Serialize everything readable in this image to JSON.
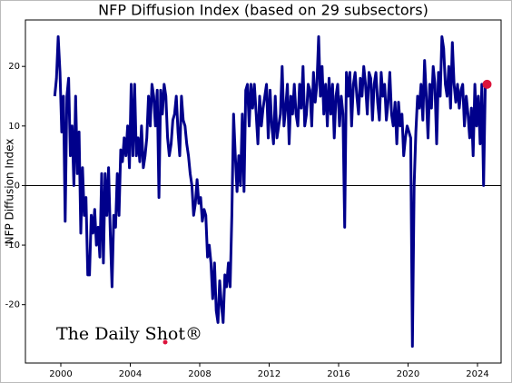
{
  "chart_data": {
    "type": "line",
    "title": "NFP Diffusion Index (based on 29 subsectors)",
    "y_label": "NFP Diffusion Index",
    "watermark": "The Daily Shot®",
    "x": [
      1999.65,
      1999.75,
      1999.85,
      1999.95,
      2000.05,
      2000.15,
      2000.25,
      2000.35,
      2000.45,
      2000.55,
      2000.65,
      2000.75,
      2000.85,
      2000.95,
      2001.05,
      2001.15,
      2001.25,
      2001.35,
      2001.45,
      2001.55,
      2001.65,
      2001.75,
      2001.85,
      2001.95,
      2002.05,
      2002.15,
      2002.25,
      2002.35,
      2002.45,
      2002.55,
      2002.65,
      2002.75,
      2002.85,
      2002.95,
      2003.05,
      2003.15,
      2003.25,
      2003.35,
      2003.45,
      2003.55,
      2003.65,
      2003.75,
      2003.85,
      2003.95,
      2004.05,
      2004.15,
      2004.25,
      2004.35,
      2004.45,
      2004.55,
      2004.65,
      2004.75,
      2004.85,
      2004.95,
      2005.05,
      2005.15,
      2005.25,
      2005.35,
      2005.45,
      2005.55,
      2005.65,
      2005.75,
      2005.85,
      2005.95,
      2006.05,
      2006.15,
      2006.25,
      2006.35,
      2006.45,
      2006.55,
      2006.65,
      2006.75,
      2006.85,
      2006.95,
      2007.05,
      2007.15,
      2007.25,
      2007.35,
      2007.45,
      2007.55,
      2007.65,
      2007.75,
      2007.85,
      2007.95,
      2008.05,
      2008.15,
      2008.25,
      2008.35,
      2008.45,
      2008.55,
      2008.65,
      2008.75,
      2008.85,
      2008.95,
      2009.05,
      2009.15,
      2009.25,
      2009.35,
      2009.45,
      2009.55,
      2009.65,
      2009.75,
      2009.85,
      2009.95,
      2010.05,
      2010.15,
      2010.25,
      2010.35,
      2010.45,
      2010.55,
      2010.65,
      2010.75,
      2010.85,
      2010.95,
      2011.05,
      2011.15,
      2011.25,
      2011.35,
      2011.45,
      2011.55,
      2011.65,
      2011.75,
      2011.85,
      2011.95,
      2012.05,
      2012.15,
      2012.25,
      2012.35,
      2012.45,
      2012.55,
      2012.65,
      2012.75,
      2012.85,
      2012.95,
      2013.05,
      2013.15,
      2013.25,
      2013.35,
      2013.45,
      2013.55,
      2013.65,
      2013.75,
      2013.85,
      2013.95,
      2014.05,
      2014.15,
      2014.25,
      2014.35,
      2014.45,
      2014.55,
      2014.65,
      2014.75,
      2014.85,
      2014.95,
      2015.05,
      2015.15,
      2015.25,
      2015.35,
      2015.45,
      2015.55,
      2015.65,
      2015.75,
      2015.85,
      2015.95,
      2016.05,
      2016.15,
      2016.25,
      2016.35,
      2016.45,
      2016.55,
      2016.65,
      2016.75,
      2016.85,
      2016.95,
      2017.05,
      2017.15,
      2017.25,
      2017.35,
      2017.45,
      2017.55,
      2017.65,
      2017.75,
      2017.85,
      2017.95,
      2018.05,
      2018.15,
      2018.25,
      2018.35,
      2018.45,
      2018.55,
      2018.65,
      2018.75,
      2018.85,
      2018.95,
      2019.05,
      2019.15,
      2019.25,
      2019.35,
      2019.45,
      2019.55,
      2019.65,
      2019.75,
      2019.85,
      2019.95,
      2020.05,
      2020.15,
      2020.25,
      2020.35,
      2020.45,
      2020.55,
      2020.65,
      2020.75,
      2020.85,
      2020.95,
      2021.05,
      2021.15,
      2021.25,
      2021.35,
      2021.45,
      2021.55,
      2021.65,
      2021.75,
      2021.85,
      2021.95,
      2022.05,
      2022.15,
      2022.25,
      2022.35,
      2022.45,
      2022.55,
      2022.65,
      2022.75,
      2022.85,
      2022.95,
      2023.05,
      2023.15,
      2023.25,
      2023.35,
      2023.45,
      2023.55,
      2023.65,
      2023.75,
      2023.85,
      2023.95,
      2024.05,
      2024.15,
      2024.25,
      2024.35,
      2024.45,
      2024.55
    ],
    "series": [
      {
        "color": "#00008b",
        "values": [
          15,
          18,
          25,
          19,
          9,
          15,
          -6,
          15,
          18,
          5,
          10,
          0,
          15,
          2,
          9,
          -8,
          3,
          -5,
          -2,
          -15,
          -15,
          -5,
          -8,
          -4,
          -10,
          -7,
          -12,
          2,
          -13,
          2,
          -5,
          3,
          -8,
          -17,
          -5,
          -7,
          2,
          -5,
          6,
          4,
          8,
          5,
          10,
          3,
          17,
          5,
          17,
          5,
          8,
          4,
          10,
          3,
          5,
          8,
          15,
          10,
          17,
          15,
          10,
          16,
          -2,
          16,
          12,
          17,
          15,
          8,
          5,
          7,
          11,
          12,
          15,
          9,
          5,
          15,
          11,
          10,
          7,
          5,
          2,
          0,
          -5,
          -3,
          1,
          -3,
          -2,
          -6,
          -4,
          -5,
          -12,
          -10,
          -13,
          -19,
          -13,
          -21,
          -23,
          -16,
          -20,
          -23,
          -15,
          -17,
          -13,
          -17,
          -5,
          12,
          5,
          -1,
          5,
          0,
          12,
          -1,
          16,
          17,
          10,
          17,
          13,
          17,
          12,
          7,
          15,
          10,
          13,
          15,
          17,
          8,
          16,
          10,
          7,
          15,
          8,
          10,
          12,
          20,
          10,
          13,
          17,
          7,
          15,
          12,
          17,
          12,
          10,
          17,
          13,
          20,
          10,
          12,
          17,
          16,
          10,
          19,
          14,
          17,
          25,
          15,
          20,
          12,
          17,
          10,
          18,
          12,
          17,
          8,
          15,
          17,
          10,
          15,
          12,
          -7,
          19,
          15,
          19,
          10,
          17,
          19,
          15,
          12,
          18,
          15,
          20,
          17,
          12,
          19,
          18,
          11,
          17,
          19,
          14,
          11,
          19,
          15,
          17,
          11,
          14,
          19,
          12,
          10,
          14,
          7,
          14,
          10,
          12,
          5,
          8,
          10,
          9,
          8,
          -27,
          0,
          9,
          15,
          13,
          17,
          11,
          21,
          15,
          8,
          17,
          13,
          20,
          17,
          7,
          19,
          15,
          25,
          23,
          17,
          15,
          20,
          13,
          24,
          17,
          14,
          17,
          13,
          16,
          17,
          10,
          15,
          12,
          8,
          13,
          5,
          17,
          10,
          15,
          7,
          17,
          0,
          17,
          17
        ]
      }
    ],
    "highlight_color": "#dc143c",
    "reference_line": 0,
    "xlim": [
      1997.96,
      2025.36
    ],
    "xticks": [
      2000,
      2004,
      2008,
      2012,
      2016,
      2020,
      2024
    ],
    "ylim": [
      -29.8,
      27.8
    ],
    "yticks": [
      -20,
      -10,
      0,
      10,
      20
    ]
  }
}
